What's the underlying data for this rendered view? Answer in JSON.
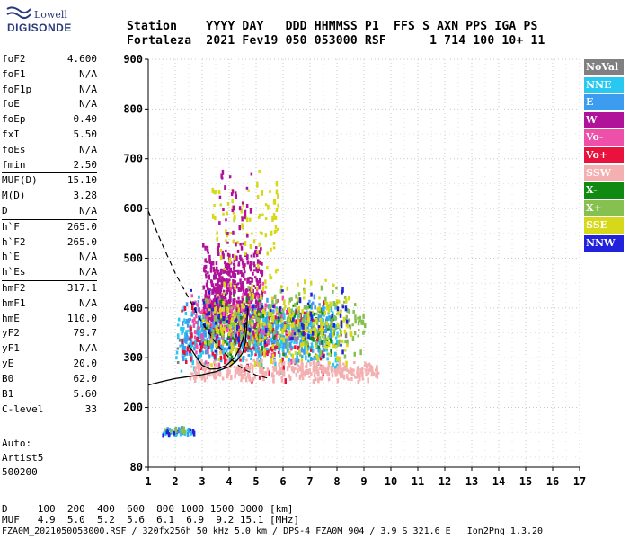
{
  "logo": {
    "top": "Lowell",
    "main": "DIGISONDE"
  },
  "header": {
    "line1": "Station    YYYY DAY   DDD HHMMSS P1  FFS S AXN PPS IGA PS",
    "line2": "Fortaleza  2021 Fev19 050 053000 RSF      1 714 100 10+ 11"
  },
  "params": {
    "g1": [
      [
        "foF2",
        "4.600"
      ],
      [
        "foF1",
        "N/A"
      ],
      [
        "foF1p",
        "N/A"
      ],
      [
        "foE",
        "N/A"
      ],
      [
        "foEp",
        "0.40"
      ],
      [
        "fxI",
        "5.50"
      ],
      [
        "foEs",
        "N/A"
      ],
      [
        "fmin",
        "2.50"
      ]
    ],
    "g2": [
      [
        "MUF(D)",
        "15.10"
      ],
      [
        "M(D)",
        "3.28"
      ],
      [
        "D",
        "N/A"
      ]
    ],
    "g3": [
      [
        "h`F",
        "265.0"
      ],
      [
        "h`F2",
        "265.0"
      ],
      [
        "h`E",
        "N/A"
      ],
      [
        "h`Es",
        "N/A"
      ]
    ],
    "g4": [
      [
        "hmF2",
        "317.1"
      ],
      [
        "hmF1",
        "N/A"
      ],
      [
        "hmE",
        "110.0"
      ],
      [
        "yF2",
        "79.7"
      ],
      [
        "yF1",
        "N/A"
      ],
      [
        "yE",
        "20.0"
      ],
      [
        "B0",
        "62.0"
      ],
      [
        "B1",
        "5.60"
      ]
    ],
    "g5": [
      [
        "C-level",
        "33"
      ]
    ]
  },
  "auto": {
    "l1": "Auto:",
    "l2": "Artist5",
    "l3": "500200"
  },
  "legend": [
    {
      "label": "NoVal",
      "color": "#808080"
    },
    {
      "label": "NNE",
      "color": "#29c8f0"
    },
    {
      "label": "E",
      "color": "#3c9cf0"
    },
    {
      "label": "W",
      "color": "#b0129a"
    },
    {
      "label": "Vo-",
      "color": "#ee4fa8"
    },
    {
      "label": "Vo+",
      "color": "#e8123c"
    },
    {
      "label": "SSW",
      "color": "#f4b0b0"
    },
    {
      "label": "X-",
      "color": "#118a11"
    },
    {
      "label": "X+",
      "color": "#86c050"
    },
    {
      "label": "SSE",
      "color": "#d8d81a"
    },
    {
      "label": "NNW",
      "color": "#2222dd"
    }
  ],
  "footer": {
    "line1": "D     100  200  400  600  800 1000 1500 3000 [km]",
    "line2": "MUF   4.9  5.0  5.2  5.6  6.1  6.9  9.2 15.1 [MHz]",
    "line3": "FZA0M_2021050053000.RSF / 320fx256h 50 kHz 5.0 km / DPS-4 FZA0M 904 / 3.9 S 321.6 E   Ion2Png 1.3.20"
  },
  "chart_data": {
    "type": "scatter",
    "xlim": [
      1,
      17
    ],
    "ylim": [
      80,
      900
    ],
    "x_ticks": [
      1,
      2,
      3,
      4,
      5,
      6,
      7,
      8,
      9,
      10,
      11,
      12,
      13,
      14,
      15,
      16,
      17
    ],
    "y_ticks": [
      80,
      200,
      300,
      400,
      500,
      600,
      700,
      800,
      900
    ],
    "grid": true,
    "trace_curve": [
      [
        1.0,
        245
      ],
      [
        1.5,
        252
      ],
      [
        2.0,
        258
      ],
      [
        2.5,
        262
      ],
      [
        3.0,
        266
      ],
      [
        3.5,
        272
      ],
      [
        4.0,
        282
      ],
      [
        4.3,
        295
      ],
      [
        4.5,
        310
      ],
      [
        4.6,
        330
      ],
      [
        4.65,
        360
      ],
      [
        4.7,
        400
      ]
    ],
    "profile_curve": [
      [
        2.5,
        325
      ],
      [
        2.8,
        300
      ],
      [
        3.0,
        285
      ],
      [
        3.3,
        277
      ],
      [
        3.6,
        278
      ],
      [
        3.9,
        285
      ],
      [
        4.2,
        300
      ],
      [
        4.4,
        320
      ],
      [
        4.55,
        345
      ],
      [
        4.6,
        370
      ]
    ],
    "dashed_curve": [
      [
        1.0,
        595
      ],
      [
        1.5,
        530
      ],
      [
        2.0,
        470
      ],
      [
        2.5,
        420
      ],
      [
        3.0,
        370
      ],
      [
        3.5,
        330
      ],
      [
        4.0,
        300
      ],
      [
        4.5,
        278
      ],
      [
        5.0,
        265
      ],
      [
        5.5,
        258
      ]
    ],
    "clusters": [
      {
        "series": "NoVal",
        "color": "#808080",
        "xr": [
          2.0,
          8.5
        ],
        "yr": [
          265,
          420
        ],
        "n": 40
      },
      {
        "series": "NNE",
        "color": "#29c8f0",
        "xr": [
          2.0,
          8.0
        ],
        "yr": [
          270,
          420
        ],
        "n": 380
      },
      {
        "series": "E",
        "color": "#3c9cf0",
        "xr": [
          2.2,
          7.8
        ],
        "yr": [
          290,
          430
        ],
        "n": 420
      },
      {
        "series": "W",
        "color": "#b0129a",
        "xr": [
          3.0,
          5.2
        ],
        "yr": [
          330,
          540
        ],
        "n": 520
      },
      {
        "series": "Vo-",
        "color": "#ee4fa8",
        "xr": [
          2.5,
          6.5
        ],
        "yr": [
          280,
          460
        ],
        "n": 140
      },
      {
        "series": "Vo+",
        "color": "#e8123c",
        "xr": [
          2.2,
          7.5
        ],
        "yr": [
          250,
          430
        ],
        "n": 150
      },
      {
        "series": "SSW",
        "color": "#f4b0b0",
        "xr": [
          2.5,
          9.5
        ],
        "yr": [
          255,
          300
        ],
        "n": 320
      },
      {
        "series": "X-",
        "color": "#118a11",
        "xr": [
          3.0,
          8.0
        ],
        "yr": [
          300,
          430
        ],
        "n": 90
      },
      {
        "series": "X+",
        "color": "#86c050",
        "xr": [
          3.0,
          9.0
        ],
        "yr": [
          300,
          450
        ],
        "n": 220
      },
      {
        "series": "SSE",
        "color": "#d8d81a",
        "xr": [
          3.0,
          8.5
        ],
        "yr": [
          280,
          470
        ],
        "n": 260
      },
      {
        "series": "NNW",
        "color": "#2222dd",
        "xr": [
          2.5,
          8.5
        ],
        "yr": [
          300,
          460
        ],
        "n": 70
      },
      {
        "series": "SSE",
        "color": "#d8d81a",
        "xr": [
          3.3,
          5.8
        ],
        "yr": [
          450,
          700
        ],
        "n": 90
      },
      {
        "series": "W",
        "color": "#b0129a",
        "xr": [
          3.5,
          4.8
        ],
        "yr": [
          520,
          700
        ],
        "n": 30
      },
      {
        "series": "NNE",
        "color": "#29c8f0",
        "xr": [
          1.5,
          2.6
        ],
        "yr": [
          145,
          165
        ],
        "n": 25
      },
      {
        "series": "E",
        "color": "#3c9cf0",
        "xr": [
          1.5,
          2.6
        ],
        "yr": [
          148,
          165
        ],
        "n": 15
      },
      {
        "series": "NNW",
        "color": "#2222dd",
        "xr": [
          1.5,
          2.7
        ],
        "yr": [
          145,
          160
        ],
        "n": 10
      },
      {
        "series": "X+",
        "color": "#86c050",
        "xr": [
          1.5,
          2.5
        ],
        "yr": [
          150,
          165
        ],
        "n": 10
      }
    ]
  }
}
